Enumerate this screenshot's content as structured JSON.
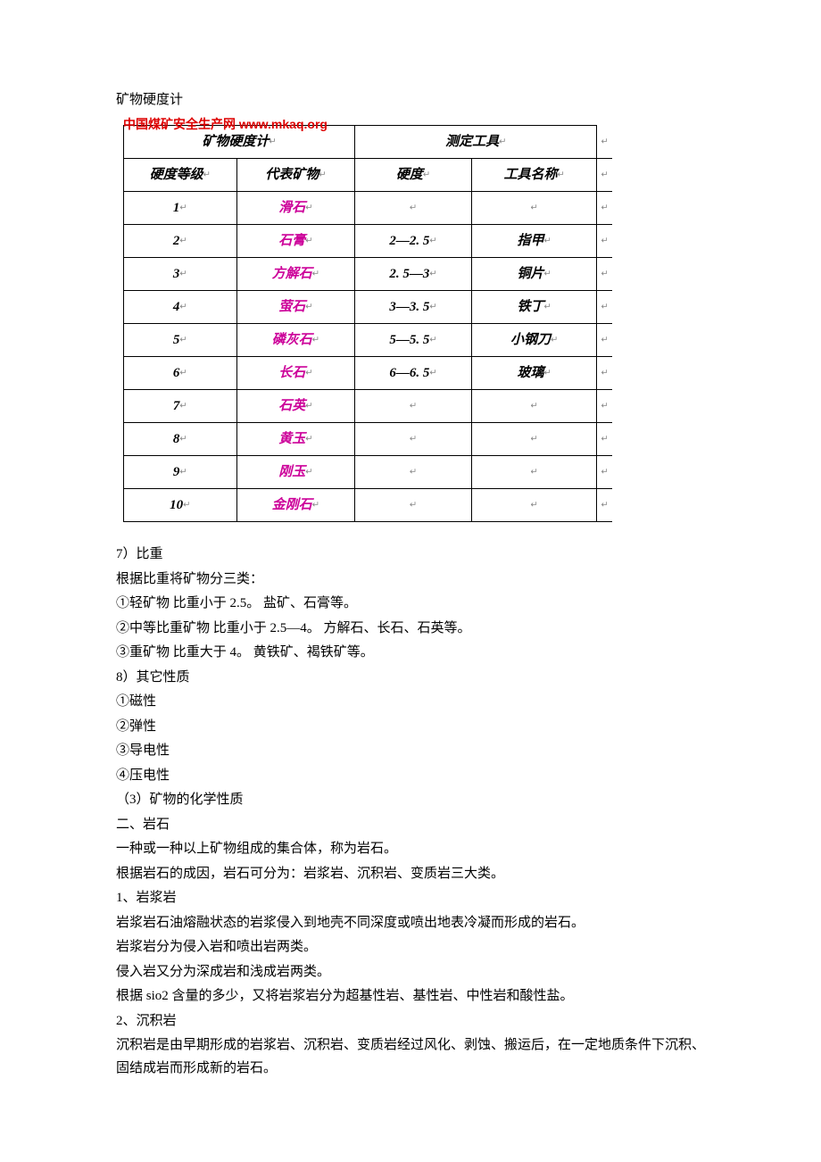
{
  "doc": {
    "pre_title": "矿物硬度计",
    "watermark": "中国煤矿安全生产网 www.mkaq.org",
    "table": {
      "header_row1": {
        "h1": "矿物硬度计",
        "h2": "测定工具"
      },
      "header_row2": {
        "c1": "硬度等级",
        "c2": "代表矿物",
        "c3": "硬度",
        "c4": "工具名称"
      },
      "rows": [
        {
          "level": "1",
          "mineral": "滑石",
          "hardness": "",
          "tool": ""
        },
        {
          "level": "2",
          "mineral": "石膏",
          "hardness": "2—2. 5",
          "tool": "指甲"
        },
        {
          "level": "3",
          "mineral": "方解石",
          "hardness": "2. 5—3",
          "tool": "铜片"
        },
        {
          "level": "4",
          "mineral": "萤石",
          "hardness": "3—3. 5",
          "tool": "铁丁"
        },
        {
          "level": "5",
          "mineral": "磷灰石",
          "hardness": "5—5. 5",
          "tool": "小钢刀"
        },
        {
          "level": "6",
          "mineral": "长石",
          "hardness": "6—6. 5",
          "tool": "玻璃"
        },
        {
          "level": "7",
          "mineral": "石英",
          "hardness": "",
          "tool": ""
        },
        {
          "level": "8",
          "mineral": "黄玉",
          "hardness": "",
          "tool": ""
        },
        {
          "level": "9",
          "mineral": "刚玉",
          "hardness": "",
          "tool": ""
        },
        {
          "level": "10",
          "mineral": "金刚石",
          "hardness": "",
          "tool": ""
        }
      ],
      "mineral_color": "#cc0099",
      "border_color": "#000000"
    },
    "paragraphs": [
      "7）比重",
      "根据比重将矿物分三类：",
      "①轻矿物  比重小于 2.5。  盐矿、石膏等。",
      "②中等比重矿物  比重小于 2.5—4。  方解石、长石、石英等。",
      "③重矿物    比重大于 4。  黄铁矿、褐铁矿等。",
      "8）其它性质",
      "①磁性",
      "②弹性",
      "③导电性",
      "④压电性",
      "（3）矿物的化学性质",
      "二、岩石",
      "一种或一种以上矿物组成的集合体，称为岩石。",
      "根据岩石的成因，岩石可分为：岩浆岩、沉积岩、变质岩三大类。",
      "1、岩浆岩",
      "岩浆岩石油熔融状态的岩浆侵入到地壳不同深度或喷出地表冷凝而形成的岩石。",
      "岩浆岩分为侵入岩和喷出岩两类。",
      "侵入岩又分为深成岩和浅成岩两类。",
      "根据 sio2 含量的多少，又将岩浆岩分为超基性岩、基性岩、中性岩和酸性盐。",
      "2、沉积岩",
      "沉积岩是由早期形成的岩浆岩、沉积岩、变质岩经过风化、剥蚀、搬运后，在一定地质条件下沉积、固结成岩而形成新的岩石。"
    ]
  }
}
